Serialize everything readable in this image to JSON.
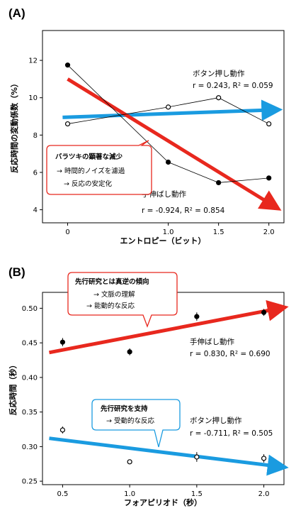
{
  "chart_data": [
    {
      "panel": "(A)",
      "type": "line",
      "xlabel": "エントロピー（ビット）",
      "ylabel": "反応時間の変動係数（%）",
      "x_ticks": [
        0,
        1.0,
        1.5,
        2.0
      ],
      "x_tick_labels": [
        "0",
        "1.0",
        "1.5",
        "2.0"
      ],
      "xlim": [
        -0.25,
        2.15
      ],
      "y_ticks": [
        4,
        6,
        8,
        10,
        12
      ],
      "ylim": [
        3.3,
        13.6
      ],
      "series": [
        {
          "name": "ボタン押し動作",
          "marker": "open",
          "color": "#000000",
          "x": [
            0,
            1.0,
            1.5,
            2.0
          ],
          "y": [
            8.6,
            9.5,
            10.0,
            8.6
          ],
          "stats": "r = 0.243, R² = 0.059",
          "trend": {
            "color": "#1a9be0",
            "x": [
              -0.05,
              2.05
            ],
            "y": [
              8.95,
              9.35
            ]
          }
        },
        {
          "name": "手伸ばし動作",
          "marker": "filled",
          "color": "#000000",
          "x": [
            0,
            1.0,
            1.5,
            2.0
          ],
          "y": [
            11.75,
            6.55,
            5.45,
            5.7
          ],
          "stats": "r = -0.924, R² = 0.854",
          "trend": {
            "color": "#e8281e",
            "x": [
              0,
              2.05
            ],
            "y": [
              11.0,
              4.2
            ]
          }
        }
      ],
      "callout": {
        "title": "バラツキの顕著な減少",
        "lines": [
          "→ 時間的ノイズを濾過",
          "→ 反応の安定化"
        ],
        "border_color": "#e8281e"
      }
    },
    {
      "panel": "(B)",
      "type": "scatter",
      "xlabel": "フォアピリオド（秒）",
      "ylabel": "反応時間（秒）",
      "x_ticks": [
        0.5,
        1.0,
        1.5,
        2.0
      ],
      "x_tick_labels": [
        "0.5",
        "1.0",
        "1.5",
        "2.0"
      ],
      "xlim": [
        0.35,
        2.15
      ],
      "y_ticks": [
        0.25,
        0.3,
        0.35,
        0.4,
        0.45,
        0.5
      ],
      "y_tick_labels": [
        "0.25",
        "0.30",
        "0.35",
        "0.40",
        "0.45",
        "0.50"
      ],
      "ylim": [
        0.245,
        0.523
      ],
      "series": [
        {
          "name": "手伸ばし動作",
          "marker": "filled",
          "x": [
            0.5,
            1.0,
            1.5,
            2.0
          ],
          "y": [
            0.451,
            0.437,
            0.488,
            0.494
          ],
          "err": [
            0.006,
            0.005,
            0.006,
            0.005
          ],
          "stats": "r = 0.830, R² = 0.690",
          "trend": {
            "color": "#e8281e",
            "x": [
              0.4,
              2.12
            ],
            "y": [
              0.436,
              0.5
            ]
          }
        },
        {
          "name": "ボタン押し動作",
          "marker": "open",
          "x": [
            0.5,
            1.0,
            1.5,
            2.0
          ],
          "y": [
            0.324,
            0.278,
            0.285,
            0.283
          ],
          "err": [
            0.005,
            0.0,
            0.007,
            0.006
          ],
          "stats": "r = -0.711, R² = 0.505",
          "trend": {
            "color": "#1a9be0",
            "x": [
              0.4,
              2.12
            ],
            "y": [
              0.312,
              0.271
            ]
          }
        }
      ],
      "callouts": [
        {
          "title": "先行研究とは真逆の傾向",
          "lines": [
            "→ 文脈の理解",
            "→ 能動的な反応"
          ],
          "border_color": "#e8281e"
        },
        {
          "title": "先行研究を支持",
          "lines": [
            "→ 受動的な反応"
          ],
          "border_color": "#1a9be0"
        }
      ]
    }
  ]
}
